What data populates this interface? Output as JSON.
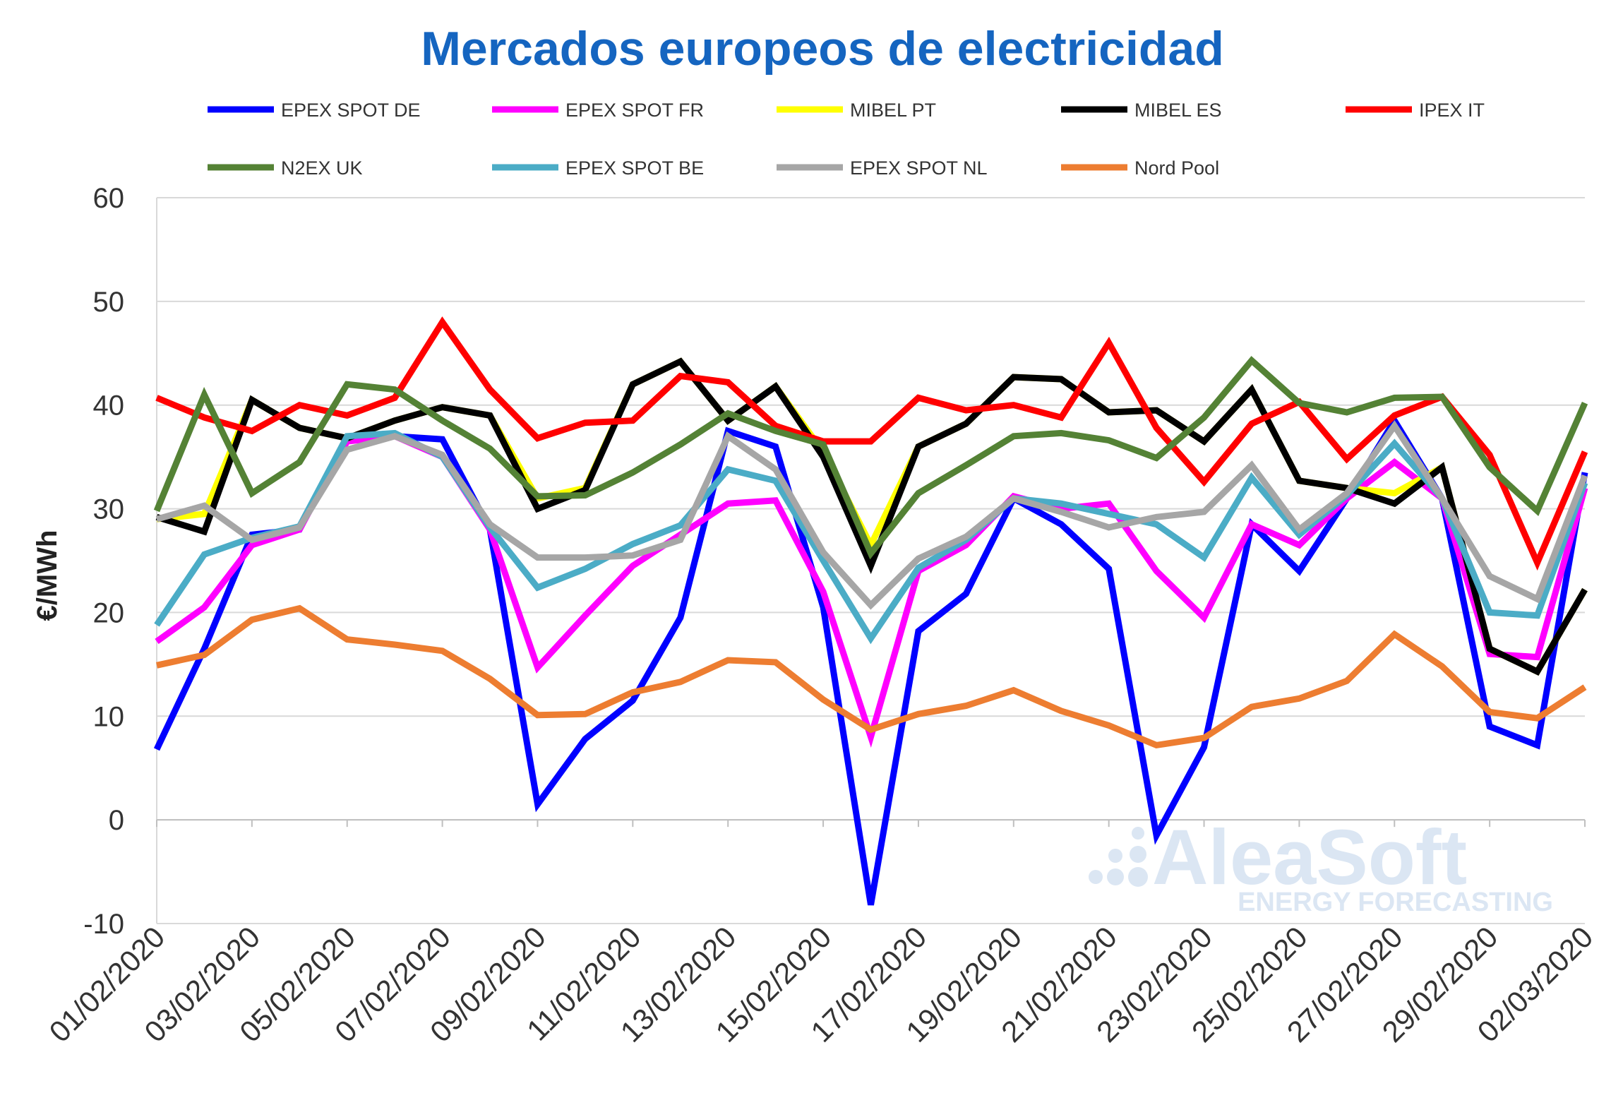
{
  "chart_data": {
    "type": "line",
    "title": "Mercados europeos de electricidad",
    "ylabel": "€/MWh",
    "xlabel": "",
    "ylim": [
      -10,
      60
    ],
    "yticks": [
      -10,
      0,
      10,
      20,
      30,
      40,
      50,
      60
    ],
    "grid": true,
    "legend_position": "top",
    "x": [
      "01/02/2020",
      "02/02/2020",
      "03/02/2020",
      "04/02/2020",
      "05/02/2020",
      "06/02/2020",
      "07/02/2020",
      "08/02/2020",
      "09/02/2020",
      "10/02/2020",
      "11/02/2020",
      "12/02/2020",
      "13/02/2020",
      "14/02/2020",
      "15/02/2020",
      "16/02/2020",
      "17/02/2020",
      "18/02/2020",
      "19/02/2020",
      "20/02/2020",
      "21/02/2020",
      "22/02/2020",
      "23/02/2020",
      "24/02/2020",
      "25/02/2020",
      "26/02/2020",
      "27/02/2020",
      "28/02/2020",
      "29/02/2020",
      "01/03/2020",
      "02/03/2020"
    ],
    "xtick_labels": [
      "01/02/2020",
      "03/02/2020",
      "05/02/2020",
      "07/02/2020",
      "09/02/2020",
      "11/02/2020",
      "13/02/2020",
      "15/02/2020",
      "17/02/2020",
      "19/02/2020",
      "21/02/2020",
      "23/02/2020",
      "25/02/2020",
      "27/02/2020",
      "29/02/2020",
      "02/03/2020"
    ],
    "series": [
      {
        "name": "EPEX SPOT DE",
        "color": "#0000ff",
        "values": [
          6.8,
          16.5,
          27.5,
          28.0,
          36.8,
          37.0,
          36.7,
          28.0,
          1.5,
          7.8,
          11.5,
          19.5,
          37.5,
          36.0,
          20.5,
          -8.2,
          18.2,
          21.8,
          31.0,
          28.5,
          24.2,
          -1.5,
          7.0,
          28.5,
          24.0,
          31.0,
          38.5,
          31.0,
          9.0,
          7.2,
          33.5
        ]
      },
      {
        "name": "EPEX SPOT FR",
        "color": "#ff00ff",
        "values": [
          17.2,
          20.5,
          26.5,
          28.0,
          36.5,
          37.0,
          35.0,
          28.0,
          14.7,
          19.7,
          24.5,
          27.5,
          30.5,
          30.8,
          22.0,
          8.0,
          24.0,
          26.5,
          31.2,
          30.0,
          30.5,
          24.0,
          19.5,
          28.5,
          26.5,
          31.0,
          34.5,
          31.0,
          16.0,
          15.7,
          32.0
        ]
      },
      {
        "name": "MIBEL PT",
        "color": "#ffff00",
        "values": [
          29.0,
          29.5,
          40.5,
          37.8,
          36.8,
          38.5,
          39.8,
          39.0,
          31.0,
          32.0,
          42.0,
          44.2,
          38.5,
          41.8,
          35.5,
          26.5,
          36.0,
          38.2,
          42.7,
          42.5,
          39.3,
          39.5,
          36.5,
          41.5,
          32.7,
          32.0,
          31.5,
          34.0,
          16.5,
          14.3,
          22.2
        ]
      },
      {
        "name": "MIBEL ES",
        "color": "#000000",
        "values": [
          29.2,
          27.8,
          40.5,
          37.8,
          36.8,
          38.5,
          39.8,
          39.0,
          30.0,
          31.8,
          42.0,
          44.2,
          38.5,
          41.8,
          35.0,
          24.5,
          36.0,
          38.2,
          42.7,
          42.5,
          39.3,
          39.5,
          36.5,
          41.5,
          32.7,
          32.0,
          30.5,
          34.0,
          16.5,
          14.3,
          22.2
        ]
      },
      {
        "name": "IPEX IT",
        "color": "#ff0000",
        "values": [
          40.7,
          38.8,
          37.5,
          40.0,
          39.0,
          40.7,
          48.0,
          41.5,
          36.8,
          38.3,
          38.5,
          42.8,
          42.2,
          38.0,
          36.5,
          36.5,
          40.7,
          39.5,
          40.0,
          38.8,
          46.0,
          37.8,
          32.6,
          38.2,
          40.3,
          34.8,
          39.0,
          40.8,
          35.2,
          24.8,
          35.5
        ]
      },
      {
        "name": "N2EX UK",
        "color": "#548235",
        "values": [
          29.8,
          41.0,
          31.5,
          34.5,
          42.0,
          41.5,
          38.5,
          35.8,
          31.2,
          31.3,
          33.5,
          36.2,
          39.2,
          37.5,
          36.2,
          25.7,
          31.5,
          34.2,
          37.0,
          37.3,
          36.6,
          34.9,
          38.8,
          44.3,
          40.2,
          39.3,
          40.7,
          40.8,
          34.0,
          29.8,
          40.2
        ]
      },
      {
        "name": "EPEX SPOT BE",
        "color": "#4bacc6",
        "values": [
          18.8,
          25.6,
          27.2,
          28.3,
          37.0,
          37.3,
          35.0,
          28.2,
          22.4,
          24.2,
          26.6,
          28.4,
          33.8,
          32.7,
          25.0,
          17.5,
          24.3,
          27.0,
          31.0,
          30.5,
          29.5,
          28.5,
          25.3,
          33.0,
          27.5,
          31.3,
          36.3,
          31.0,
          20.0,
          19.7,
          32.5
        ]
      },
      {
        "name": "EPEX SPOT NL",
        "color": "#a6a6a6",
        "values": [
          29.0,
          30.3,
          27.0,
          28.2,
          35.7,
          37.0,
          35.2,
          28.5,
          25.3,
          25.3,
          25.5,
          27.0,
          37.0,
          33.8,
          25.8,
          20.7,
          25.2,
          27.3,
          31.0,
          29.7,
          28.2,
          29.2,
          29.7,
          34.2,
          28.0,
          31.5,
          38.0,
          31.0,
          23.5,
          21.3,
          33.2
        ]
      },
      {
        "name": "Nord Pool",
        "color": "#ed7d31",
        "values": [
          14.9,
          15.9,
          19.3,
          20.4,
          17.4,
          16.9,
          16.3,
          13.6,
          10.1,
          10.2,
          12.3,
          13.3,
          15.4,
          15.2,
          11.6,
          8.7,
          10.2,
          11.0,
          12.5,
          10.5,
          9.1,
          7.2,
          7.9,
          10.9,
          11.7,
          13.4,
          17.9,
          14.8,
          10.4,
          9.8,
          12.8
        ]
      }
    ]
  },
  "watermark": {
    "name": "AleaSoft",
    "tagline": "ENERGY FORECASTING"
  }
}
